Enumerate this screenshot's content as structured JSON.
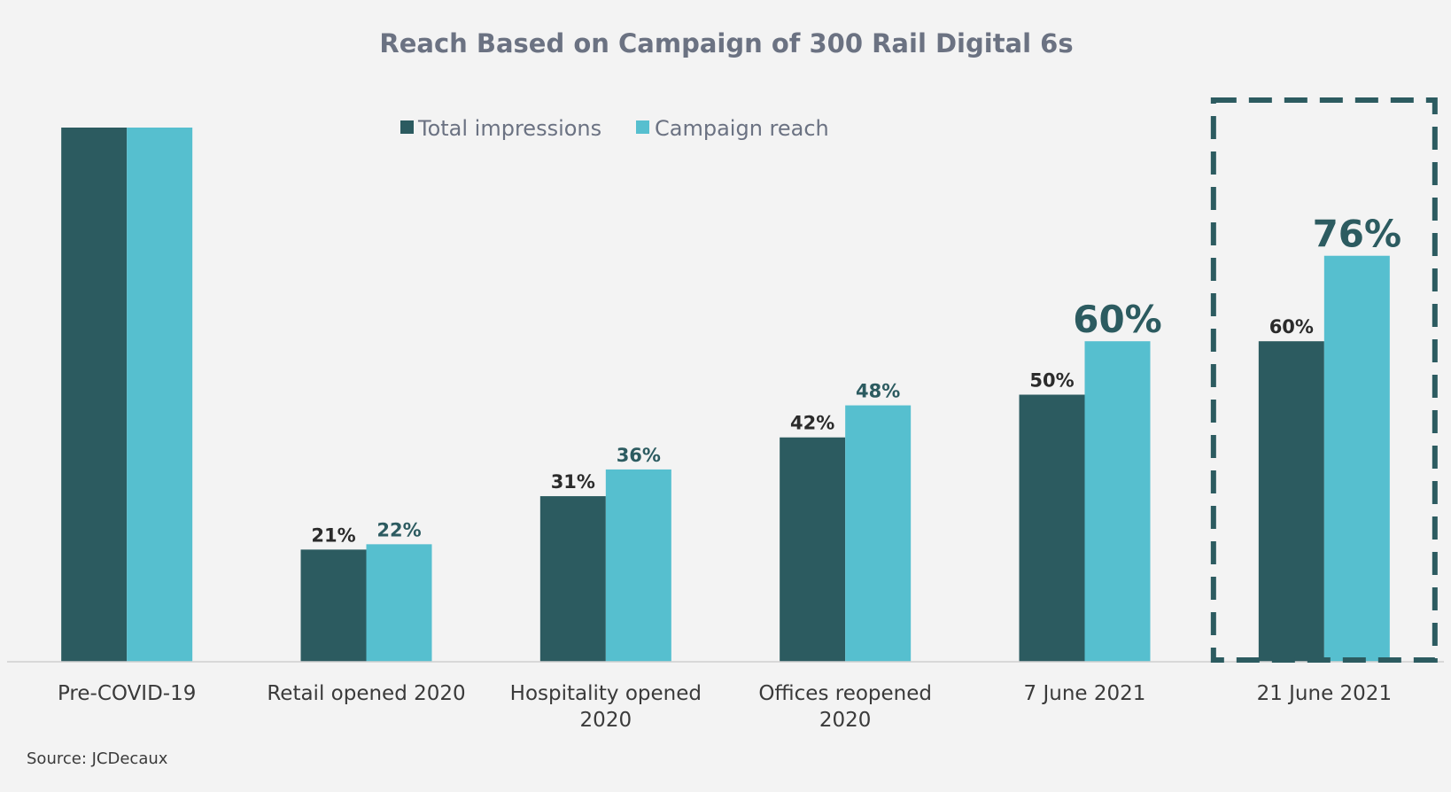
{
  "colors": {
    "background": "#f3f3f3",
    "total_impressions": "#2c5b60",
    "campaign_reach": "#56bfcf",
    "label_dark": "#2b2b2b",
    "label_teal": "#2c5b60",
    "highlight_border": "#2c5b60",
    "axis": "#d0d0d0"
  },
  "chart_data": {
    "type": "bar",
    "title": "Reach Based on Campaign of 300 Rail Digital 6s",
    "categories": [
      [
        "Pre-COVID-19"
      ],
      [
        "Retail opened 2020"
      ],
      [
        "Hospitality opened",
        "2020"
      ],
      [
        "Offices reopened",
        "2020"
      ],
      [
        "7 June 2021"
      ],
      [
        "21 June 2021"
      ]
    ],
    "series": [
      {
        "name": "Total impressions",
        "values": [
          100,
          21,
          31,
          42,
          50,
          60
        ],
        "labels": [
          "",
          "21%",
          "31%",
          "42%",
          "50%",
          "60%"
        ]
      },
      {
        "name": "Campaign reach",
        "values": [
          100,
          22,
          36,
          48,
          60,
          76
        ],
        "labels": [
          "",
          "22%",
          "36%",
          "48%",
          "60%",
          "76%"
        ]
      }
    ],
    "ylim": [
      0,
      100
    ],
    "grid": false,
    "legend_position": "top",
    "highlighted_category": "21 June 2021",
    "source": "Source: JCDecaux"
  }
}
